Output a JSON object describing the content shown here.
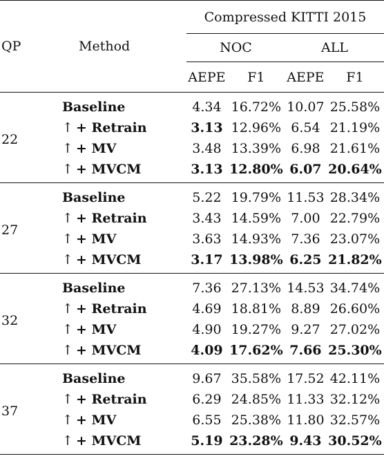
{
  "header": {
    "qp": "QP",
    "method": "Method",
    "dataset": "Compressed KITTI 2015",
    "noc": "NOC",
    "all": "ALL",
    "aepe": "AEPE",
    "f1": "F1"
  },
  "groups": [
    {
      "qp": "22",
      "rows": [
        {
          "method": "Baseline",
          "arrow": "",
          "noc_aepe": "4.34",
          "noc_f1": "16.72%",
          "all_aepe": "10.07",
          "all_f1": "25.58%",
          "bold": [
            false,
            false,
            false,
            false
          ]
        },
        {
          "method": "+ Retrain",
          "arrow": "↑",
          "noc_aepe": "3.13",
          "noc_f1": "12.96%",
          "all_aepe": "6.54",
          "all_f1": "21.19%",
          "bold": [
            true,
            false,
            false,
            false
          ]
        },
        {
          "method": "+ MV",
          "arrow": "↑",
          "noc_aepe": "3.48",
          "noc_f1": "13.39%",
          "all_aepe": "6.98",
          "all_f1": "21.61%",
          "bold": [
            false,
            false,
            false,
            false
          ]
        },
        {
          "method": "+ MVCM",
          "arrow": "↑",
          "noc_aepe": "3.13",
          "noc_f1": "12.80%",
          "all_aepe": "6.07",
          "all_f1": "20.64%",
          "bold": [
            true,
            true,
            true,
            true
          ]
        }
      ]
    },
    {
      "qp": "27",
      "rows": [
        {
          "method": "Baseline",
          "arrow": "",
          "noc_aepe": "5.22",
          "noc_f1": "19.79%",
          "all_aepe": "11.53",
          "all_f1": "28.34%",
          "bold": [
            false,
            false,
            false,
            false
          ]
        },
        {
          "method": "+ Retrain",
          "arrow": "↑",
          "noc_aepe": "3.43",
          "noc_f1": "14.59%",
          "all_aepe": "7.00",
          "all_f1": "22.79%",
          "bold": [
            false,
            false,
            false,
            false
          ]
        },
        {
          "method": "+ MV",
          "arrow": "↑",
          "noc_aepe": "3.63",
          "noc_f1": "14.93%",
          "all_aepe": "7.36",
          "all_f1": "23.07%",
          "bold": [
            false,
            false,
            false,
            false
          ]
        },
        {
          "method": "+ MVCM",
          "arrow": "↑",
          "noc_aepe": "3.17",
          "noc_f1": "13.98%",
          "all_aepe": "6.25",
          "all_f1": "21.82%",
          "bold": [
            true,
            true,
            true,
            true
          ]
        }
      ]
    },
    {
      "qp": "32",
      "rows": [
        {
          "method": "Baseline",
          "arrow": "",
          "noc_aepe": "7.36",
          "noc_f1": "27.13%",
          "all_aepe": "14.53",
          "all_f1": "34.74%",
          "bold": [
            false,
            false,
            false,
            false
          ]
        },
        {
          "method": "+ Retrain",
          "arrow": "↑",
          "noc_aepe": "4.69",
          "noc_f1": "18.81%",
          "all_aepe": "8.89",
          "all_f1": "26.60%",
          "bold": [
            false,
            false,
            false,
            false
          ]
        },
        {
          "method": "+ MV",
          "arrow": "↑",
          "noc_aepe": "4.90",
          "noc_f1": "19.27%",
          "all_aepe": "9.27",
          "all_f1": "27.02%",
          "bold": [
            false,
            false,
            false,
            false
          ]
        },
        {
          "method": "+ MVCM",
          "arrow": "↑",
          "noc_aepe": "4.09",
          "noc_f1": "17.62%",
          "all_aepe": "7.66",
          "all_f1": "25.30%",
          "bold": [
            true,
            true,
            true,
            true
          ]
        }
      ]
    },
    {
      "qp": "37",
      "rows": [
        {
          "method": "Baseline",
          "arrow": "",
          "noc_aepe": "9.67",
          "noc_f1": "35.58%",
          "all_aepe": "17.52",
          "all_f1": "42.11%",
          "bold": [
            false,
            false,
            false,
            false
          ]
        },
        {
          "method": "+ Retrain",
          "arrow": "↑",
          "noc_aepe": "6.29",
          "noc_f1": "24.85%",
          "all_aepe": "11.33",
          "all_f1": "32.12%",
          "bold": [
            false,
            false,
            false,
            false
          ]
        },
        {
          "method": "+ MV",
          "arrow": "↑",
          "noc_aepe": "6.55",
          "noc_f1": "25.38%",
          "all_aepe": "11.80",
          "all_f1": "32.57%",
          "bold": [
            false,
            false,
            false,
            false
          ]
        },
        {
          "method": "+ MVCM",
          "arrow": "↑",
          "noc_aepe": "5.19",
          "noc_f1": "23.28%",
          "all_aepe": "9.43",
          "all_f1": "30.52%",
          "bold": [
            true,
            true,
            true,
            true
          ]
        }
      ]
    }
  ]
}
